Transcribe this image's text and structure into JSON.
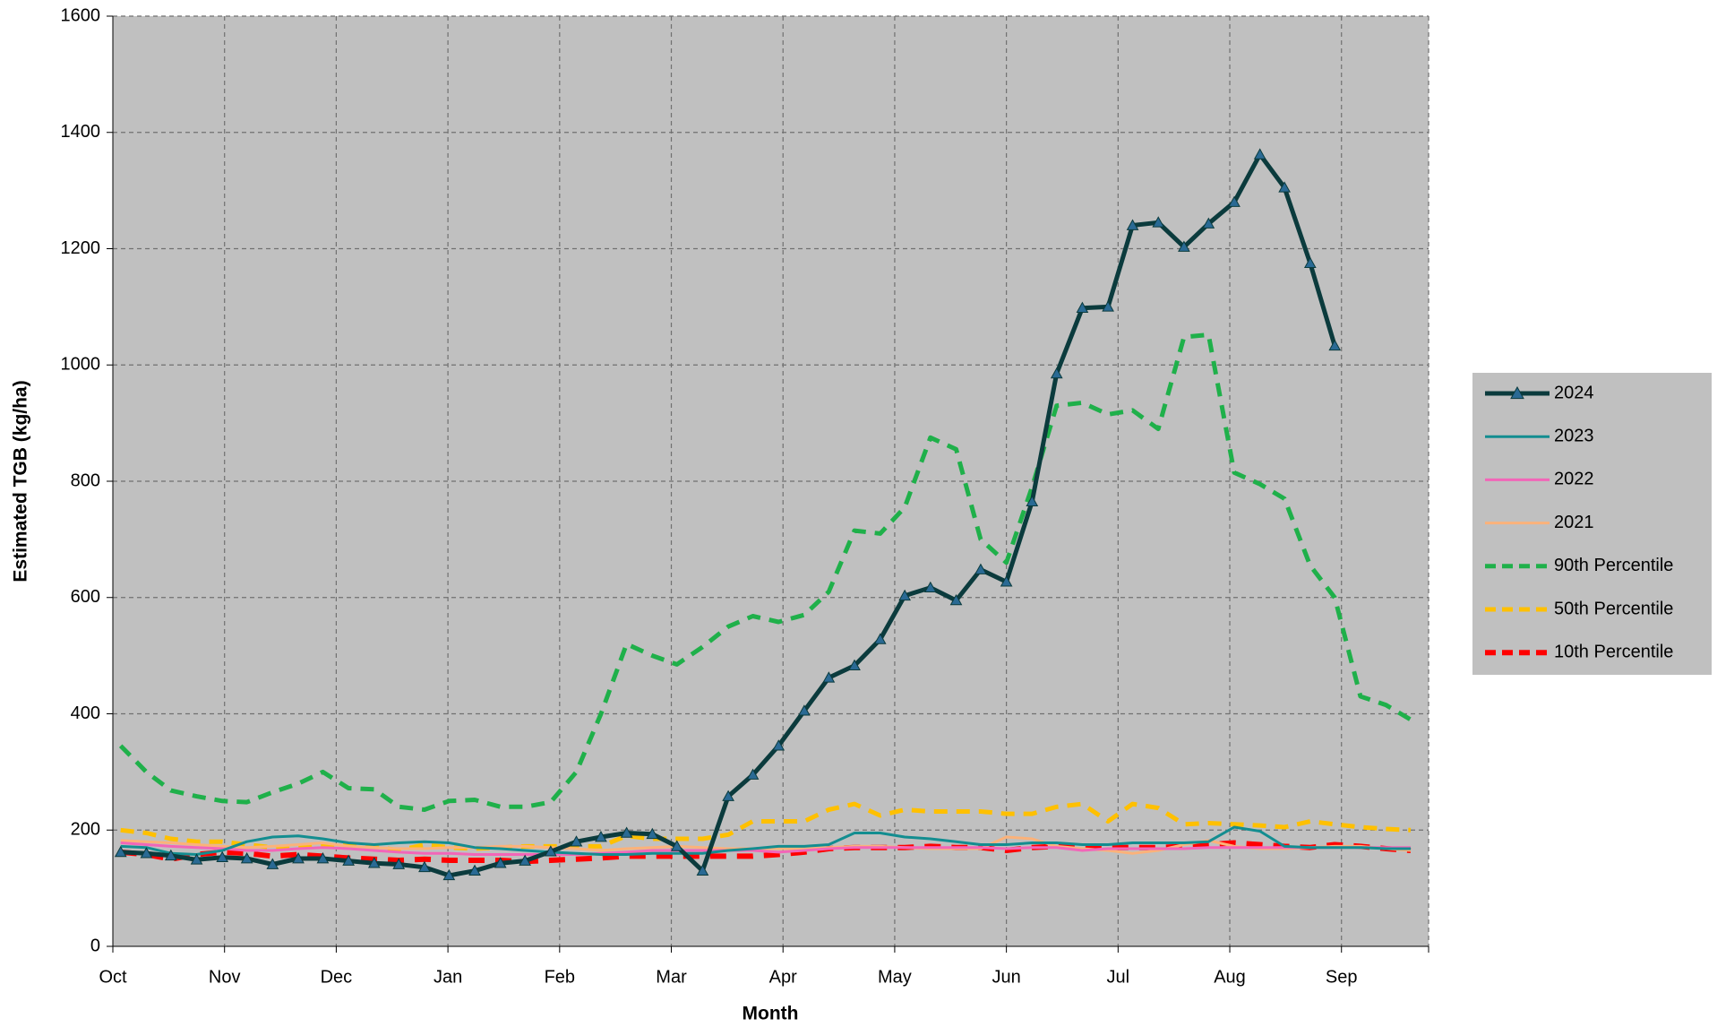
{
  "chart_data": {
    "type": "line",
    "x_label": "Month",
    "y_label": "Estimated TGB (kg/ha)",
    "xlim": [
      0,
      11.78
    ],
    "xticks": [
      {
        "value": 0,
        "label": "Oct"
      },
      {
        "value": 1,
        "label": "Nov"
      },
      {
        "value": 2,
        "label": "Dec"
      },
      {
        "value": 3,
        "label": "Jan"
      },
      {
        "value": 4,
        "label": "Feb"
      },
      {
        "value": 5,
        "label": "Mar"
      },
      {
        "value": 6,
        "label": "Apr"
      },
      {
        "value": 7,
        "label": "May"
      },
      {
        "value": 8,
        "label": "Jun"
      },
      {
        "value": 9,
        "label": "Jul"
      },
      {
        "value": 10,
        "label": "Aug"
      },
      {
        "value": 11,
        "label": "Sep"
      }
    ],
    "ylim": [
      0,
      1600
    ],
    "yticks": [
      0,
      200,
      400,
      600,
      800,
      1000,
      1200,
      1400,
      1600
    ],
    "grid": true,
    "legend": "right",
    "x": [
      0.07,
      0.3,
      0.52,
      0.75,
      0.98,
      1.2,
      1.43,
      1.66,
      1.88,
      2.11,
      2.34,
      2.56,
      2.79,
      3.01,
      3.24,
      3.47,
      3.69,
      3.92,
      4.15,
      4.37,
      4.6,
      4.83,
      5.05,
      5.28,
      5.51,
      5.73,
      5.96,
      6.19,
      6.41,
      6.64,
      6.87,
      7.09,
      7.32,
      7.55,
      7.77,
      8.0,
      8.23,
      8.45,
      8.68,
      8.91,
      9.13,
      9.36,
      9.59,
      9.81,
      10.04,
      10.27,
      10.49,
      10.72,
      10.94,
      11.17,
      11.4,
      11.62
    ],
    "series": [
      {
        "name": "2024",
        "color": "#0b3b3d",
        "marker": "triangle",
        "marker_color": "#2a6a94",
        "style": "solid",
        "width": 5,
        "values": [
          162,
          160,
          156,
          149,
          153,
          151,
          141,
          151,
          151,
          147,
          143,
          141,
          136,
          122,
          130,
          143,
          147,
          163,
          180,
          188,
          195,
          193,
          172,
          130,
          258,
          295,
          345,
          405,
          462,
          483,
          528,
          603,
          617,
          595,
          648,
          627,
          765,
          985,
          1098,
          1100,
          1240,
          1245,
          1203,
          1243,
          1280,
          1362,
          1305,
          1175,
          1033,
          null,
          null,
          null
        ]
      },
      {
        "name": "2023",
        "color": "#138d90",
        "style": "solid",
        "width": 3,
        "values": [
          172,
          170,
          160,
          158,
          165,
          180,
          188,
          190,
          185,
          178,
          175,
          178,
          180,
          178,
          170,
          168,
          165,
          162,
          160,
          158,
          158,
          160,
          160,
          160,
          165,
          168,
          172,
          172,
          175,
          195,
          195,
          188,
          185,
          180,
          175,
          175,
          178,
          178,
          175,
          175,
          178,
          178,
          178,
          180,
          205,
          198,
          172,
          170,
          170,
          170,
          168,
          168
        ]
      },
      {
        "name": "2022",
        "color": "#f266b8",
        "style": "solid",
        "width": 3,
        "values": [
          178,
          175,
          172,
          170,
          168,
          165,
          165,
          168,
          170,
          168,
          165,
          162,
          160,
          160,
          158,
          158,
          158,
          158,
          158,
          160,
          162,
          165,
          165,
          165,
          165,
          165,
          162,
          165,
          168,
          170,
          170,
          170,
          170,
          170,
          170,
          168,
          170,
          170,
          165,
          168,
          168,
          168,
          168,
          170,
          170,
          170,
          170,
          170,
          170,
          170,
          170,
          170
        ]
      },
      {
        "name": "2021",
        "color": "#fbb27a",
        "style": "solid",
        "width": 3,
        "values": [
          182,
          180,
          178,
          175,
          172,
          170,
          172,
          175,
          178,
          172,
          170,
          168,
          168,
          170,
          170,
          172,
          172,
          170,
          168,
          165,
          168,
          170,
          172,
          170,
          168,
          168,
          168,
          168,
          170,
          172,
          172,
          170,
          168,
          168,
          168,
          188,
          185,
          172,
          168,
          165,
          160,
          165,
          175,
          182,
          172,
          168,
          168,
          170,
          172,
          172,
          168,
          165
        ]
      },
      {
        "name": "90th Percentile",
        "color": "#1fb04a",
        "style": "dashed",
        "width": 5,
        "values": [
          345,
          300,
          268,
          258,
          250,
          248,
          265,
          280,
          300,
          272,
          270,
          240,
          235,
          250,
          252,
          240,
          240,
          248,
          300,
          400,
          520,
          500,
          485,
          515,
          550,
          568,
          558,
          570,
          610,
          715,
          710,
          755,
          875,
          855,
          700,
          660,
          790,
          930,
          935,
          915,
          922,
          890,
          1048,
          1052,
          815,
          795,
          770,
          655,
          600,
          430,
          415,
          390
        ]
      },
      {
        "name": "50th Percentile",
        "color": "#ffc000",
        "style": "dashed",
        "width": 5,
        "values": [
          200,
          195,
          185,
          180,
          180,
          175,
          170,
          172,
          172,
          175,
          172,
          165,
          175,
          170,
          168,
          170,
          172,
          172,
          172,
          172,
          190,
          185,
          185,
          185,
          192,
          215,
          215,
          215,
          235,
          245,
          225,
          235,
          232,
          232,
          232,
          228,
          228,
          240,
          245,
          215,
          245,
          238,
          210,
          212,
          210,
          208,
          205,
          215,
          210,
          205,
          202,
          200
        ]
      },
      {
        "name": "10th Percentile",
        "color": "#ff0000",
        "style": "dashed",
        "width": 6,
        "values": [
          162,
          158,
          150,
          158,
          162,
          160,
          155,
          158,
          155,
          152,
          150,
          148,
          150,
          148,
          148,
          148,
          146,
          148,
          150,
          152,
          155,
          155,
          155,
          155,
          155,
          155,
          158,
          162,
          168,
          170,
          170,
          170,
          172,
          170,
          170,
          165,
          170,
          172,
          172,
          170,
          170,
          170,
          172,
          175,
          178,
          175,
          172,
          170,
          175,
          172,
          168,
          165
        ]
      }
    ]
  }
}
